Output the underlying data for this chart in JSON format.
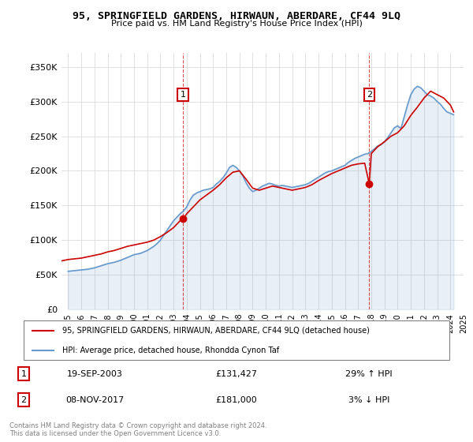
{
  "title": "95, SPRINGFIELD GARDENS, HIRWAUN, ABERDARE, CF44 9LQ",
  "subtitle": "Price paid vs. HM Land Registry's House Price Index (HPI)",
  "legend_line1": "95, SPRINGFIELD GARDENS, HIRWAUN, ABERDARE, CF44 9LQ (detached house)",
  "legend_line2": "HPI: Average price, detached house, Rhondda Cynon Taf",
  "footnote": "Contains HM Land Registry data © Crown copyright and database right 2024.\nThis data is licensed under the Open Government Licence v3.0.",
  "transaction1_label": "1",
  "transaction1_date": "19-SEP-2003",
  "transaction1_price": "£131,427",
  "transaction1_hpi": "29% ↑ HPI",
  "transaction2_label": "2",
  "transaction2_date": "08-NOV-2017",
  "transaction2_price": "£181,000",
  "transaction2_hpi": "3% ↓ HPI",
  "ylim": [
    0,
    370000
  ],
  "yticks": [
    0,
    50000,
    100000,
    150000,
    200000,
    250000,
    300000,
    350000
  ],
  "ytick_labels": [
    "£0",
    "£50K",
    "£100K",
    "£150K",
    "£200K",
    "£250K",
    "£300K",
    "£350K"
  ],
  "property_color": "#cc0000",
  "hpi_color": "#6699cc",
  "transaction1_x": 2003.72,
  "transaction2_x": 2017.85,
  "hpi_years": [
    1995.0,
    1995.25,
    1995.5,
    1995.75,
    1996.0,
    1996.25,
    1996.5,
    1996.75,
    1997.0,
    1997.25,
    1997.5,
    1997.75,
    1998.0,
    1998.25,
    1998.5,
    1998.75,
    1999.0,
    1999.25,
    1999.5,
    1999.75,
    2000.0,
    2000.25,
    2000.5,
    2000.75,
    2001.0,
    2001.25,
    2001.5,
    2001.75,
    2002.0,
    2002.25,
    2002.5,
    2002.75,
    2003.0,
    2003.25,
    2003.5,
    2003.75,
    2004.0,
    2004.25,
    2004.5,
    2004.75,
    2005.0,
    2005.25,
    2005.5,
    2005.75,
    2006.0,
    2006.25,
    2006.5,
    2006.75,
    2007.0,
    2007.25,
    2007.5,
    2007.75,
    2008.0,
    2008.25,
    2008.5,
    2008.75,
    2009.0,
    2009.25,
    2009.5,
    2009.75,
    2010.0,
    2010.25,
    2010.5,
    2010.75,
    2011.0,
    2011.25,
    2011.5,
    2011.75,
    2012.0,
    2012.25,
    2012.5,
    2012.75,
    2013.0,
    2013.25,
    2013.5,
    2013.75,
    2014.0,
    2014.25,
    2014.5,
    2014.75,
    2015.0,
    2015.25,
    2015.5,
    2015.75,
    2016.0,
    2016.25,
    2016.5,
    2016.75,
    2017.0,
    2017.25,
    2017.5,
    2017.75,
    2018.0,
    2018.25,
    2018.5,
    2018.75,
    2019.0,
    2019.25,
    2019.5,
    2019.75,
    2020.0,
    2020.25,
    2020.5,
    2020.75,
    2021.0,
    2021.25,
    2021.5,
    2021.75,
    2022.0,
    2022.25,
    2022.5,
    2022.75,
    2023.0,
    2023.25,
    2023.5,
    2023.75,
    2024.0,
    2024.25
  ],
  "hpi_values": [
    55000,
    55500,
    56000,
    56500,
    57000,
    57500,
    58000,
    59000,
    60000,
    61500,
    63000,
    64500,
    66000,
    67000,
    68000,
    69500,
    71000,
    73000,
    75000,
    77000,
    79000,
    80000,
    81000,
    83000,
    85000,
    88000,
    91000,
    95000,
    100000,
    107000,
    114000,
    121000,
    128000,
    133000,
    138000,
    142000,
    148000,
    158000,
    165000,
    168000,
    170000,
    172000,
    173000,
    174000,
    176000,
    181000,
    185000,
    190000,
    197000,
    205000,
    208000,
    205000,
    200000,
    193000,
    183000,
    175000,
    170000,
    172000,
    175000,
    178000,
    180000,
    182000,
    181000,
    179000,
    178000,
    179000,
    178000,
    177000,
    176000,
    177000,
    178000,
    179000,
    180000,
    182000,
    185000,
    188000,
    191000,
    194000,
    197000,
    199000,
    200000,
    202000,
    204000,
    206000,
    208000,
    212000,
    215000,
    218000,
    220000,
    222000,
    224000,
    225000,
    228000,
    232000,
    236000,
    238000,
    242000,
    248000,
    255000,
    262000,
    265000,
    261000,
    278000,
    295000,
    310000,
    318000,
    322000,
    320000,
    315000,
    310000,
    308000,
    305000,
    300000,
    296000,
    290000,
    285000,
    283000,
    281000
  ],
  "property_years": [
    1994.5,
    1995.0,
    1995.5,
    1996.0,
    1996.5,
    1997.0,
    1997.5,
    1998.0,
    1998.5,
    1999.0,
    1999.5,
    2000.0,
    2000.5,
    2001.0,
    2001.5,
    2002.0,
    2002.5,
    2003.0,
    2003.5,
    2003.75,
    2004.0,
    2004.5,
    2005.0,
    2005.5,
    2006.0,
    2006.5,
    2007.0,
    2007.5,
    2008.0,
    2008.5,
    2009.0,
    2009.5,
    2010.0,
    2010.5,
    2011.0,
    2011.5,
    2012.0,
    2012.5,
    2013.0,
    2013.5,
    2014.0,
    2014.5,
    2015.0,
    2015.5,
    2016.0,
    2016.5,
    2017.0,
    2017.5,
    2017.85,
    2018.0,
    2018.5,
    2019.0,
    2019.5,
    2020.0,
    2020.5,
    2021.0,
    2021.5,
    2022.0,
    2022.5,
    2023.0,
    2023.5,
    2024.0,
    2024.25
  ],
  "property_values": [
    70000,
    72000,
    73000,
    74000,
    76000,
    78000,
    80000,
    83000,
    85000,
    88000,
    91000,
    93000,
    95000,
    97000,
    100000,
    105000,
    111000,
    118000,
    128000,
    131427,
    138000,
    148000,
    158000,
    165000,
    172000,
    180000,
    190000,
    198000,
    200000,
    188000,
    175000,
    172000,
    175000,
    178000,
    176000,
    174000,
    172000,
    174000,
    176000,
    180000,
    186000,
    191000,
    196000,
    200000,
    204000,
    208000,
    210000,
    211000,
    181000,
    225000,
    235000,
    242000,
    250000,
    255000,
    265000,
    280000,
    292000,
    305000,
    315000,
    310000,
    305000,
    295000,
    285000
  ]
}
